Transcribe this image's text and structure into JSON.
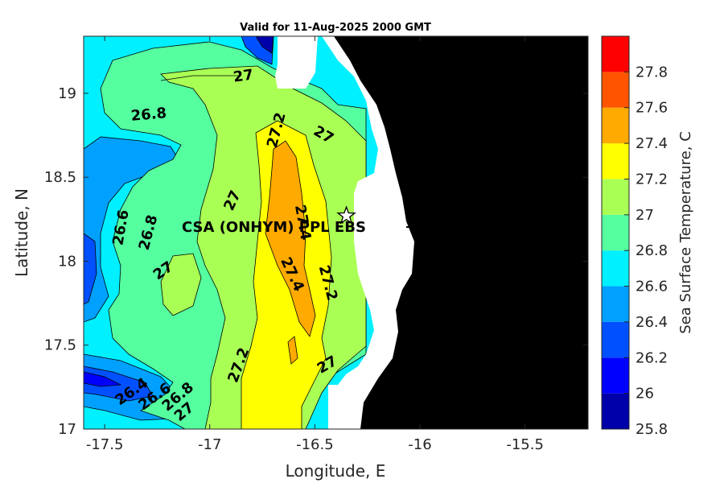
{
  "title": "Valid for 11-Aug-2025 2000 GMT",
  "x_axis": {
    "label": "Longitude, E",
    "ticks": [
      "-17.5",
      "-17",
      "-16.5",
      "-16",
      "-15.5"
    ]
  },
  "y_axis": {
    "label": "Latitude, N",
    "ticks": [
      "19",
      "18.5",
      "18",
      "17.5",
      "17"
    ]
  },
  "colorbar": {
    "label": "Sea Surface Temperature, C",
    "ticks": [
      "27.8",
      "27.6",
      "27.4",
      "27.2",
      "27",
      "26.8",
      "26.6",
      "26.4",
      "26.2",
      "26",
      "25.8"
    ],
    "levels": [
      {
        "value": "25.8",
        "color": "#0000aa"
      },
      {
        "value": "26",
        "color": "#0000ff"
      },
      {
        "value": "26.2",
        "color": "#0050ff"
      },
      {
        "value": "26.4",
        "color": "#00a0ff"
      },
      {
        "value": "26.6",
        "color": "#00f0ff"
      },
      {
        "value": "26.8",
        "color": "#55ff9f"
      },
      {
        "value": "27",
        "color": "#aaff55"
      },
      {
        "value": "27.2",
        "color": "#ffff00"
      },
      {
        "value": "27.4",
        "color": "#ffaa00"
      },
      {
        "value": "27.6",
        "color": "#ff5500"
      },
      {
        "value": "27.8",
        "color": "#ff0000"
      }
    ]
  },
  "station": {
    "label": "CSA (ONHYM) PPL EBS",
    "lon": -16.35,
    "lat": 18.27,
    "marker": "star-icon"
  },
  "contour_labels": [
    {
      "text": "27",
      "lon": -16.84,
      "lat": 19.1
    },
    {
      "text": "26.8",
      "lon": -17.29,
      "lat": 18.87
    },
    {
      "text": "27.2",
      "lon": -16.68,
      "lat": 18.78
    },
    {
      "text": "27",
      "lon": -16.46,
      "lat": 18.75
    },
    {
      "text": "27",
      "lon": -16.89,
      "lat": 18.36
    },
    {
      "text": "26.6",
      "lon": -17.42,
      "lat": 18.2
    },
    {
      "text": "26.8",
      "lon": -17.29,
      "lat": 18.17
    },
    {
      "text": "27.4",
      "lon": -16.56,
      "lat": 18.23
    },
    {
      "text": "27",
      "lon": -17.22,
      "lat": 17.94
    },
    {
      "text": "27.4",
      "lon": -16.61,
      "lat": 17.92
    },
    {
      "text": "27.2",
      "lon": -16.44,
      "lat": 17.87
    },
    {
      "text": "27.2",
      "lon": -16.86,
      "lat": 17.38
    },
    {
      "text": "27",
      "lon": -16.44,
      "lat": 17.38
    },
    {
      "text": "26.4",
      "lon": -17.37,
      "lat": 17.22
    },
    {
      "text": "26.6",
      "lon": -17.26,
      "lat": 17.19
    },
    {
      "text": "26.8",
      "lon": -17.15,
      "lat": 17.19
    },
    {
      "text": "27",
      "lon": -17.12,
      "lat": 17.1
    }
  ],
  "colors": {
    "land": "#000000",
    "no_data": "#ffffff",
    "contour_line": "#000000"
  }
}
